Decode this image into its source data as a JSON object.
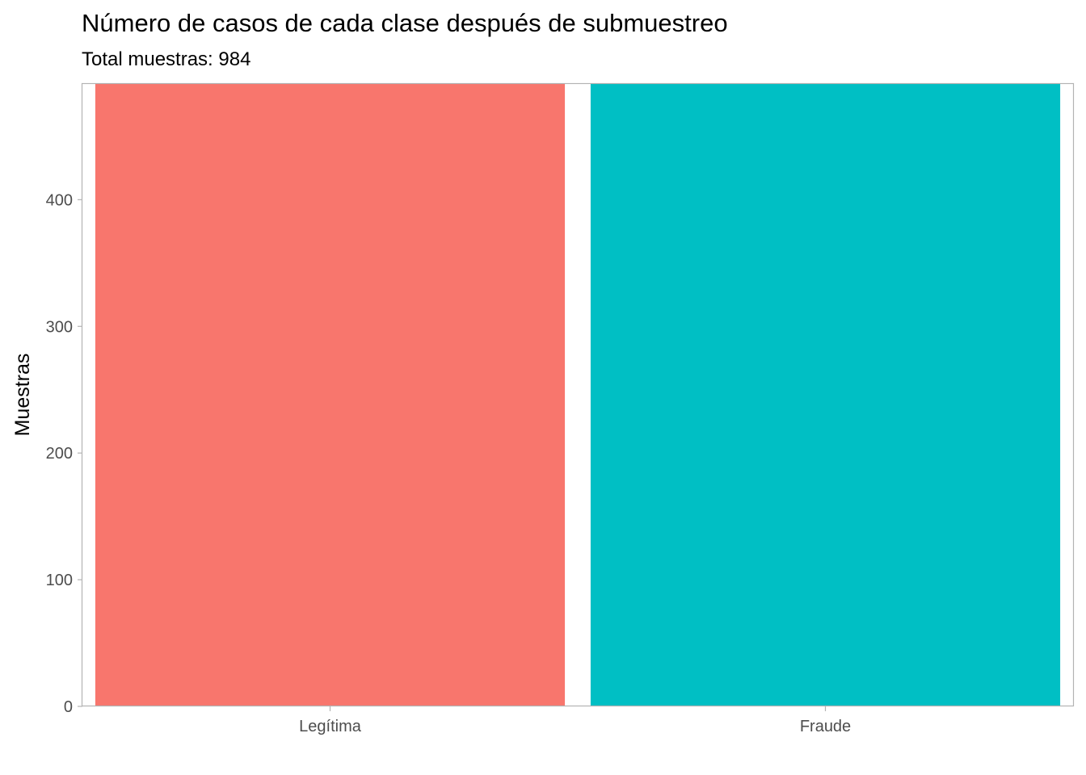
{
  "chart_data": {
    "type": "bar",
    "title": "Número de casos de cada clase después de submuestreo",
    "subtitle": "Total muestras: 984",
    "xlabel": "",
    "ylabel": "Muestras",
    "categories": [
      "Legítima",
      "Fraude"
    ],
    "values": [
      492,
      492
    ],
    "colors": [
      "#F8766D",
      "#00BFC4"
    ],
    "ylim": [
      0,
      492
    ],
    "yticks": [
      0,
      100,
      200,
      300,
      400
    ],
    "grid": false,
    "legend": "none"
  }
}
